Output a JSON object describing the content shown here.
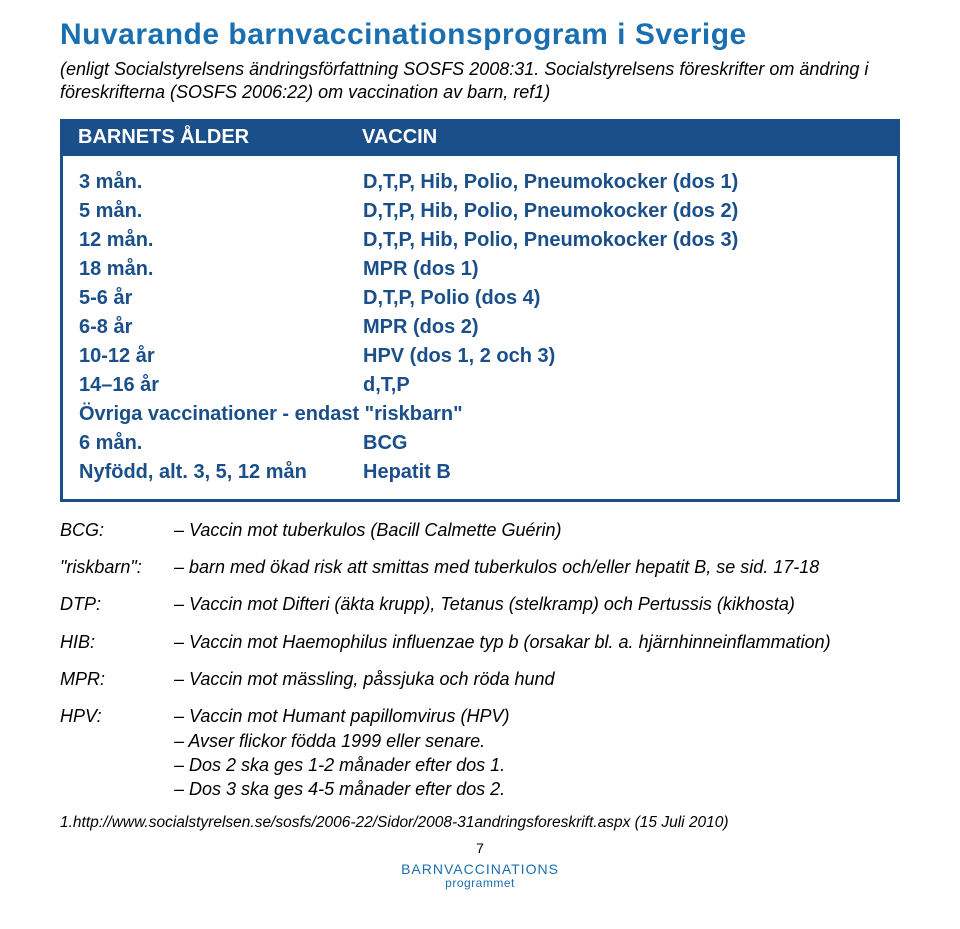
{
  "colors": {
    "title": "#1a6fb0",
    "header_bg": "#1a4f8a",
    "border": "#1a4f8a",
    "body_text": "#1a4f8a",
    "footer_brand": "#1a6fb0"
  },
  "title": "Nuvarande barnvaccinationsprogram i Sverige",
  "subtitle": "(enligt Socialstyrelsens ändringsförfattning SOSFS 2008:31. Socialstyrelsens föreskrifter om ändring i föreskrifterna (SOSFS 2006:22) om vaccination av barn, ref1)",
  "table": {
    "header_col1": "BARNETS ÅLDER",
    "header_col2": "VACCIN",
    "rows": [
      {
        "age": "3 mån.",
        "vaccine": "D,T,P, Hib, Polio, Pneumokocker (dos 1)"
      },
      {
        "age": "5 mån.",
        "vaccine": "D,T,P, Hib, Polio, Pneumokocker (dos 2)"
      },
      {
        "age": "12 mån.",
        "vaccine": "D,T,P, Hib, Polio, Pneumokocker (dos 3)"
      },
      {
        "age": "18 mån.",
        "vaccine": "MPR (dos 1)"
      },
      {
        "age": "5-6 år",
        "vaccine": "D,T,P, Polio (dos 4)"
      },
      {
        "age": "6-8 år",
        "vaccine": "MPR (dos 2)"
      },
      {
        "age": "10-12 år",
        "vaccine": "HPV (dos 1, 2 och 3)"
      },
      {
        "age": "14–16 år",
        "vaccine": "d,T,P"
      },
      {
        "age": "Övriga vaccinationer - endast \"riskbarn\"",
        "vaccine": "",
        "span": true
      },
      {
        "age": "6 mån.",
        "vaccine": "BCG"
      },
      {
        "age": "Nyfödd, alt. 3, 5, 12 mån",
        "vaccine": "Hepatit B"
      }
    ]
  },
  "definitions": [
    {
      "term": "BCG:",
      "lines": [
        "– Vaccin mot tuberkulos (Bacill Calmette Guérin)"
      ]
    },
    {
      "term": "\"riskbarn\":",
      "lines": [
        "– barn med ökad risk att smittas med tuberkulos och/eller hepatit B, se sid. 17-18"
      ]
    },
    {
      "term": "DTP:",
      "lines": [
        "– Vaccin mot Difteri (äkta krupp), Tetanus (stelkramp) och Pertussis (kikhosta)"
      ]
    },
    {
      "term": "HIB:",
      "lines": [
        "– Vaccin mot Haemophilus influenzae typ b (orsakar bl. a. hjärnhinneinflammation)"
      ]
    },
    {
      "term": "MPR:",
      "lines": [
        "– Vaccin mot mässling, påssjuka och röda hund"
      ]
    },
    {
      "term": "HPV:",
      "lines": [
        "– Vaccin mot Humant papillomvirus (HPV)",
        "– Avser flickor födda 1999 eller senare.",
        "– Dos 2 ska ges 1-2 månader efter dos 1.",
        "– Dos 3 ska ges 4-5 månader efter dos 2."
      ]
    }
  ],
  "footnote": "1.http://www.socialstyrelsen.se/sosfs/2006-22/Sidor/2008-31andringsforeskrift.aspx (15 Juli 2010)",
  "page_number": "7",
  "footer_brand_l1": "BARNVACCINATIONS",
  "footer_brand_l2": "programmet"
}
